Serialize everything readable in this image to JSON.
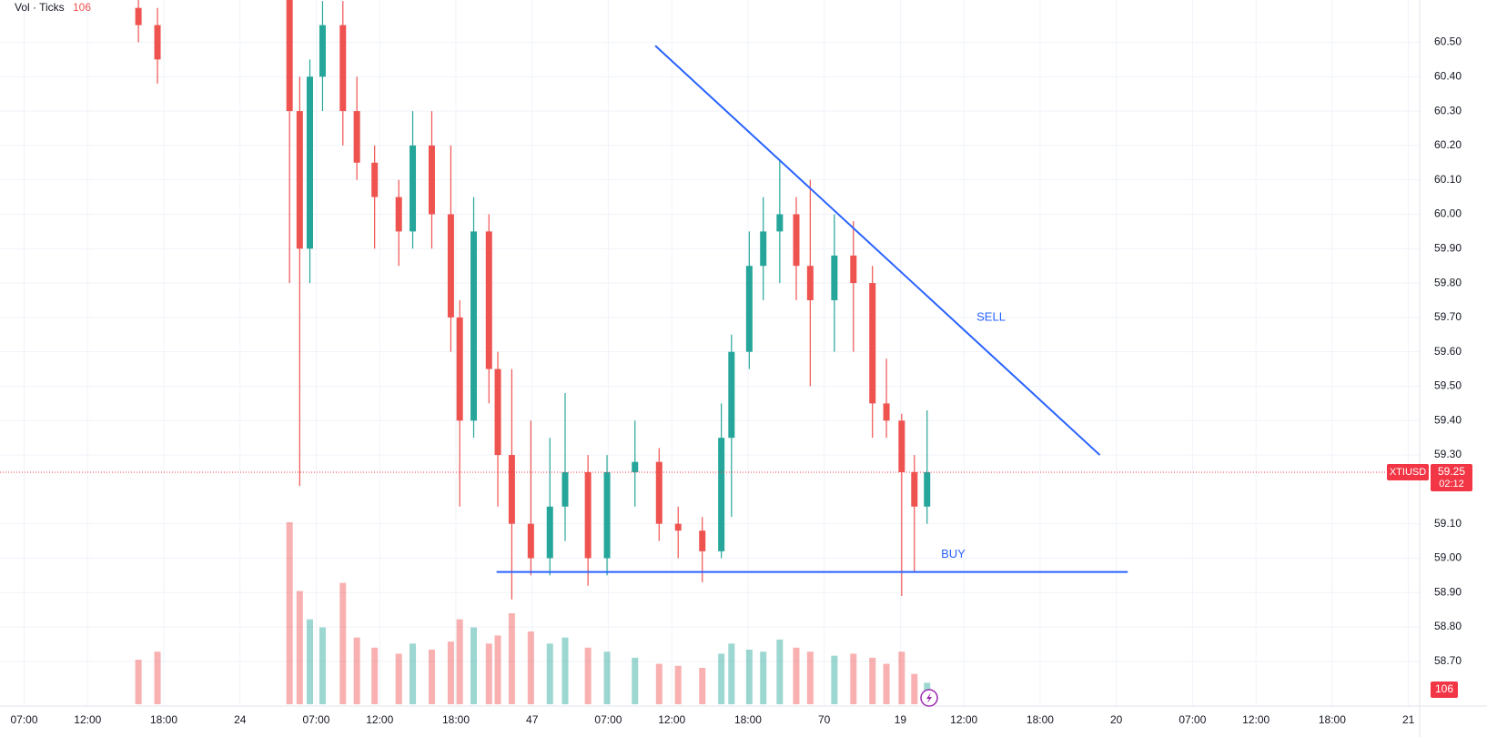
{
  "chart_data": {
    "type": "candlestick",
    "legend": {
      "label": "Vol · Ticks",
      "value": 106
    },
    "x": [
      16.0,
      17.5,
      27.9,
      28.7,
      29.5,
      30.5,
      32.1,
      33.2,
      34.6,
      36.5,
      37.6,
      39.1,
      40.6,
      41.3,
      42.4,
      43.6,
      44.3,
      45.4,
      46.9,
      48.4,
      49.6,
      51.4,
      52.9,
      55.1,
      57.0,
      58.5,
      60.4,
      61.9,
      62.7,
      64.1,
      65.2,
      66.5,
      67.8,
      68.9,
      70.8,
      72.3,
      73.8,
      74.9,
      76.1,
      77.1,
      78.1
    ],
    "open": [
      60.6,
      60.55,
      60.7,
      60.3,
      59.9,
      60.4,
      60.55,
      60.3,
      60.15,
      60.05,
      59.95,
      60.2,
      60.0,
      59.7,
      59.4,
      59.95,
      59.55,
      59.3,
      59.1,
      59.0,
      59.15,
      59.25,
      59.0,
      59.25,
      59.28,
      59.1,
      59.08,
      59.02,
      59.35,
      59.6,
      59.85,
      59.95,
      60.0,
      59.85,
      59.75,
      59.88,
      59.8,
      59.45,
      59.4,
      59.25,
      59.15
    ],
    "high": [
      60.66,
      60.6,
      60.78,
      60.4,
      60.45,
      60.62,
      60.62,
      60.4,
      60.2,
      60.1,
      60.3,
      60.3,
      60.2,
      59.75,
      60.05,
      60.0,
      59.6,
      59.55,
      59.4,
      59.35,
      59.48,
      59.3,
      59.3,
      59.4,
      59.32,
      59.15,
      59.12,
      59.45,
      59.65,
      59.95,
      60.05,
      60.16,
      60.05,
      60.1,
      60.0,
      59.98,
      59.85,
      59.58,
      59.42,
      59.3,
      59.43
    ],
    "low": [
      60.5,
      60.38,
      59.8,
      59.21,
      59.8,
      60.3,
      60.2,
      60.1,
      59.9,
      59.85,
      59.9,
      59.9,
      59.6,
      59.15,
      59.35,
      59.45,
      59.15,
      58.88,
      58.95,
      58.95,
      59.05,
      58.92,
      58.95,
      59.15,
      59.05,
      59.0,
      58.93,
      59.0,
      59.12,
      59.55,
      59.75,
      59.8,
      59.75,
      59.5,
      59.6,
      59.6,
      59.35,
      59.35,
      58.89,
      58.96,
      59.1
    ],
    "close": [
      60.55,
      60.45,
      60.3,
      59.9,
      60.4,
      60.55,
      60.3,
      60.15,
      60.05,
      59.95,
      60.2,
      60.0,
      59.7,
      59.4,
      59.95,
      59.55,
      59.3,
      59.1,
      59.0,
      59.15,
      59.25,
      59.0,
      59.25,
      59.28,
      59.1,
      59.08,
      59.02,
      59.35,
      59.6,
      59.85,
      59.95,
      60.0,
      59.85,
      59.75,
      59.88,
      59.8,
      59.45,
      59.4,
      59.25,
      59.15,
      59.25
    ],
    "volume": [
      220,
      260,
      900,
      560,
      420,
      380,
      600,
      330,
      280,
      250,
      300,
      270,
      310,
      420,
      380,
      300,
      340,
      450,
      360,
      300,
      330,
      280,
      260,
      230,
      200,
      190,
      180,
      250,
      300,
      270,
      260,
      320,
      280,
      260,
      240,
      250,
      230,
      200,
      260,
      150,
      106
    ],
    "up_color": "#26a69a",
    "down_color": "#ef5350",
    "xlim": [
      5.1,
      116.6
    ],
    "xticks": [
      {
        "value": 7,
        "label": "07:00"
      },
      {
        "value": 12,
        "label": "12:00"
      },
      {
        "value": 18,
        "label": "18:00"
      },
      24,
      {
        "value": 30,
        "label": "07:00"
      },
      {
        "value": 35,
        "label": "12:00"
      },
      {
        "value": 41,
        "label": "18:00"
      },
      47,
      {
        "value": 53,
        "label": "07:00"
      },
      {
        "value": 58,
        "label": "12:00"
      },
      {
        "value": 64,
        "label": "18:00"
      },
      70,
      {
        "value": 76,
        "label": "19"
      },
      {
        "value": 81,
        "label": "12:00"
      },
      {
        "value": 87,
        "label": "18:00"
      },
      {
        "value": 93,
        "label": "20"
      },
      {
        "value": 99,
        "label": "07:00"
      },
      {
        "value": 104,
        "label": "12:00"
      },
      {
        "value": 110,
        "label": "18:00"
      },
      {
        "value": 116,
        "label": "21"
      }
    ],
    "ylim": [
      58.57,
      60.623
    ],
    "yticks": [
      {
        "value": 58.7,
        "label": "58.70"
      },
      {
        "value": 58.8,
        "label": "58.80"
      },
      {
        "value": 58.9,
        "label": "58.90"
      },
      {
        "value": 59.0,
        "label": "59.00"
      },
      {
        "value": 59.1,
        "label": "59.10"
      },
      {
        "value": 59.3,
        "label": "59.30"
      },
      {
        "value": 59.4,
        "label": "59.40"
      },
      {
        "value": 59.5,
        "label": "59.50"
      },
      {
        "value": 59.6,
        "label": "59.60"
      },
      {
        "value": 59.7,
        "label": "59.70"
      },
      {
        "value": 59.8,
        "label": "59.80"
      },
      {
        "value": 59.9,
        "label": "59.90"
      },
      {
        "value": 60.0,
        "label": "60.00"
      },
      {
        "value": 60.1,
        "label": "60.10"
      },
      {
        "value": 60.2,
        "label": "60.20"
      },
      {
        "value": 60.3,
        "label": "60.30"
      },
      {
        "value": 60.4,
        "label": "60.40"
      },
      {
        "value": 60.5,
        "label": "60.50"
      }
    ],
    "grid": true,
    "lines": [
      {
        "x": [
          56.7,
          91.7
        ],
        "y": [
          60.49,
          59.3
        ],
        "color": "#2962ff"
      },
      {
        "x": [
          44.2,
          93.9
        ],
        "y": [
          58.96,
          58.96
        ],
        "color": "#2962ff"
      }
    ],
    "annotations": [
      {
        "text": "SELL",
        "x": 82,
        "y": 59.7,
        "color": "#2962ff"
      },
      {
        "text": "BUY",
        "x": 79.2,
        "y": 59.01,
        "color": "#2962ff"
      }
    ],
    "last_price": {
      "symbol": "XTIUSD",
      "value": 59.25,
      "countdown": "02:12",
      "color": "#f23645"
    }
  }
}
